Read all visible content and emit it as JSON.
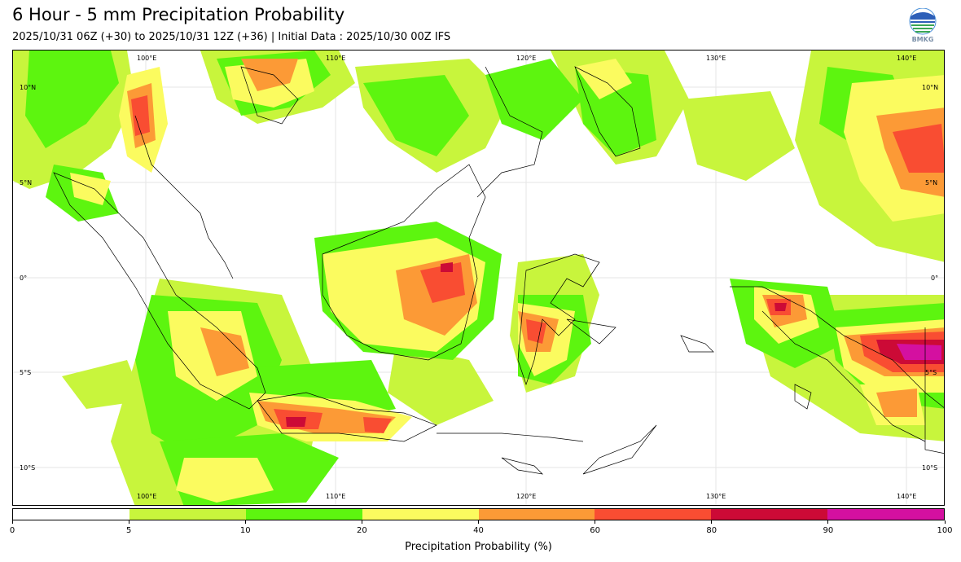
{
  "header": {
    "title": "6 Hour - 5 mm Precipitation Probability",
    "subtitle": "2025/10/31 06Z (+30) to 2025/10/31 12Z (+36) | Initial Data : 2025/10/30 00Z IFS",
    "logo_text": "BMKG"
  },
  "map": {
    "lon_labels": [
      "100°E",
      "110°E",
      "120°E",
      "130°E",
      "140°E"
    ],
    "lat_labels": [
      "10°N",
      "5°N",
      "0°",
      "5°S",
      "10°S"
    ]
  },
  "colorbar": {
    "label": "Precipitation Probability (%)",
    "ticks": [
      "0",
      "5",
      "10",
      "20",
      "40",
      "60",
      "80",
      "90",
      "100"
    ],
    "colors": [
      "#ffffff",
      "#c8f53c",
      "#5df50f",
      "#fbfb5f",
      "#fc9a36",
      "#f94d32",
      "#cc0a36",
      "#d410a0"
    ]
  }
}
